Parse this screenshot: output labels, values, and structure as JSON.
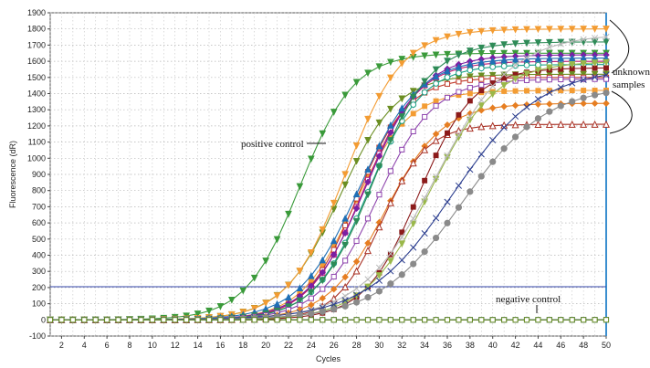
{
  "chart_data": {
    "type": "line",
    "xlabel": "Cycles",
    "ylabel": "Fluorescence (dR)",
    "xlim": [
      1,
      50
    ],
    "ylim": [
      -100,
      1900
    ],
    "x_ticks": [
      "2",
      "4",
      "6",
      "8",
      "10",
      "12",
      "14",
      "16",
      "18",
      "20",
      "22",
      "24",
      "26",
      "28",
      "30",
      "32",
      "34",
      "36",
      "38",
      "40",
      "42",
      "44",
      "46",
      "48",
      "50"
    ],
    "y_ticks": [
      "-100",
      "0",
      "100",
      "200",
      "300",
      "400",
      "500",
      "600",
      "700",
      "800",
      "900",
      "1000",
      "1100",
      "1200",
      "1300",
      "1400",
      "1500",
      "1600",
      "1700",
      "1800",
      "1900"
    ],
    "grid": true,
    "threshold": 205,
    "annotations": {
      "positive": "positive control",
      "negative": "negative control",
      "unknown_line1": "unknown",
      "unknown_line2": "samples"
    },
    "series_params": [
      {
        "color": "#3a9a3a",
        "marker": "tri-down",
        "plateau": 1650,
        "mid": 23.0,
        "k": 0.42
      },
      {
        "color": "#6b8e23",
        "marker": "tri-down",
        "plateau": 1520,
        "mid": 26.5,
        "k": 0.4
      },
      {
        "color": "#f39c33",
        "marker": "tri-down",
        "plateau": 1800,
        "mid": 27.0,
        "k": 0.4
      },
      {
        "color": "#f39c33",
        "marker": "square",
        "plateau": 1420,
        "mid": 27.8,
        "k": 0.42
      },
      {
        "color": "#c0392b",
        "marker": "square-open",
        "plateau": 1500,
        "mid": 28.0,
        "k": 0.45
      },
      {
        "color": "#c0166d",
        "marker": "square-open",
        "plateau": 1600,
        "mid": 28.6,
        "k": 0.42
      },
      {
        "color": "#7b1fa2",
        "marker": "diamond",
        "plateau": 1640,
        "mid": 28.8,
        "k": 0.4
      },
      {
        "color": "#1f6fb5",
        "marker": "tri-up",
        "plateau": 1620,
        "mid": 28.2,
        "k": 0.38
      },
      {
        "color": "#16a085",
        "marker": "circle-open",
        "plateau": 1580,
        "mid": 29.0,
        "k": 0.42
      },
      {
        "color": "#2e8b57",
        "marker": "tri-down",
        "plateau": 1720,
        "mid": 29.5,
        "k": 0.4
      },
      {
        "color": "#8e44ad",
        "marker": "square-open",
        "plateau": 1490,
        "mid": 29.8,
        "k": 0.4
      },
      {
        "color": "#e67e22",
        "marker": "diamond",
        "plateau": 1340,
        "mid": 30.5,
        "k": 0.4
      },
      {
        "color": "#a93226",
        "marker": "tri-up-open",
        "plateau": 1210,
        "mid": 30.2,
        "k": 0.5
      },
      {
        "color": "#8b1a1a",
        "marker": "square",
        "plateau": 1560,
        "mid": 33.5,
        "k": 0.42
      },
      {
        "color": "#9ab84a",
        "marker": "tri-down",
        "plateau": 1600,
        "mid": 34.5,
        "k": 0.35
      },
      {
        "color": "#b8b8b8",
        "marker": "x",
        "plateau": 1770,
        "mid": 35.0,
        "k": 0.3
      },
      {
        "color": "#2c3e8f",
        "marker": "x",
        "plateau": 1560,
        "mid": 36.5,
        "k": 0.26
      },
      {
        "color": "#8a8a8a",
        "marker": "circle",
        "plateau": 1450,
        "mid": 37.3,
        "k": 0.27
      },
      {
        "color": "#1a7a7a",
        "marker": "square-open",
        "plateau": 10,
        "mid": 60,
        "k": 0.3
      },
      {
        "color": "#2c3e8f",
        "marker": "square",
        "plateau": 15,
        "mid": 60,
        "k": 0.3
      },
      {
        "color": "#6b8e23",
        "marker": "square-open",
        "plateau": 8,
        "mid": 60,
        "k": 0.3
      }
    ]
  }
}
